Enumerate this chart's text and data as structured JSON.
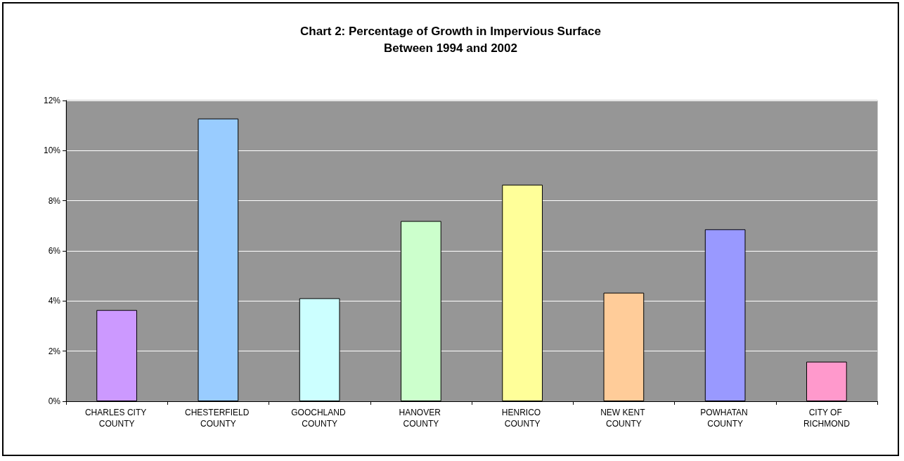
{
  "chart_data": {
    "type": "bar",
    "title": "Chart 2: Percentage of Growth in Impervious Surface\nBetween 1994 and 2002",
    "categories": [
      "CHARLES CITY COUNTY",
      "CHESTERFIELD COUNTY",
      "GOOCHLAND COUNTY",
      "HANOVER COUNTY",
      "HENRICO COUNTY",
      "NEW KENT COUNTY",
      "POWHATAN COUNTY",
      "CITY OF RICHMOND"
    ],
    "values": [
      3.64,
      11.28,
      4.11,
      7.19,
      8.64,
      4.33,
      6.86,
      1.58
    ],
    "colors": [
      "#cc99ff",
      "#99ccff",
      "#ccffff",
      "#ccffcc",
      "#ffff99",
      "#ffcc99",
      "#9999ff",
      "#ff99cc"
    ],
    "ylim": [
      0,
      12
    ],
    "yticks": [
      {
        "value": 0,
        "label": "0%"
      },
      {
        "value": 2,
        "label": "2%"
      },
      {
        "value": 4,
        "label": "4%"
      },
      {
        "value": 6,
        "label": "6%"
      },
      {
        "value": 8,
        "label": "8%"
      },
      {
        "value": 10,
        "label": "10%"
      },
      {
        "value": 12,
        "label": "12%"
      }
    ],
    "grid": "y"
  }
}
